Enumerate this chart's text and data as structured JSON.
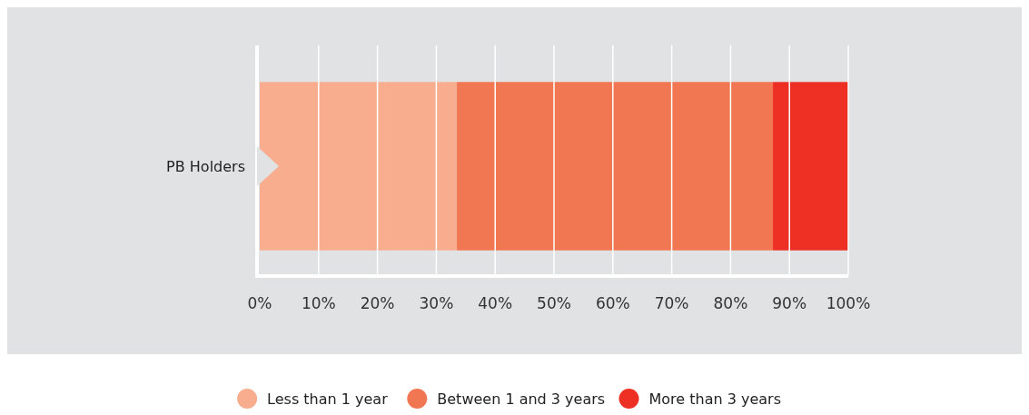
{
  "chart_data": {
    "type": "bar",
    "orientation": "horizontal",
    "stacked": true,
    "categories": [
      "PB Holders"
    ],
    "series": [
      {
        "name": "Less than 1 year",
        "color": "#f8ad8f",
        "values": [
          33.5
        ]
      },
      {
        "name": "Between 1 and 3 years",
        "color": "#f17753",
        "values": [
          53.7
        ]
      },
      {
        "name": "More than 3 years",
        "color": "#ee2f24",
        "values": [
          12.8
        ]
      }
    ],
    "xlim": [
      0,
      100
    ],
    "xticks": [
      {
        "value": 0,
        "label": "0%"
      },
      {
        "value": 10,
        "label": "10%"
      },
      {
        "value": 20,
        "label": "20%"
      },
      {
        "value": 30,
        "label": "30%"
      },
      {
        "value": 40,
        "label": "40%"
      },
      {
        "value": 50,
        "label": "50%"
      },
      {
        "value": 60,
        "label": "60%"
      },
      {
        "value": 70,
        "label": "70%"
      },
      {
        "value": 80,
        "label": "80%"
      },
      {
        "value": 90,
        "label": "90%"
      },
      {
        "value": 100,
        "label": "100%"
      }
    ],
    "grid": "x",
    "legend": "bottom"
  }
}
